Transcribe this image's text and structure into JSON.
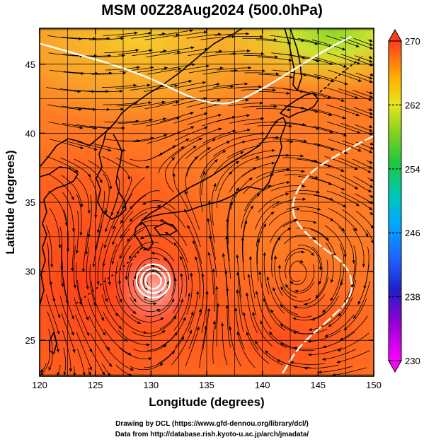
{
  "title": "MSM 00Z28Aug2024 (500.0hPa)",
  "credits": {
    "line1": "Drawing by DCL (https://www.gfd-dennou.org/library/dcl/)",
    "line2": "Data from http://database.rish.kyoto-u.ac.jp/arch/jmadata/"
  },
  "axes": {
    "xlabel": "Longitude (degrees)",
    "ylabel": "Latitude  (degrees)",
    "xlim": [
      120,
      150
    ],
    "ylim": [
      22.4,
      47.6
    ],
    "xticks": [
      120,
      125,
      130,
      135,
      140,
      145,
      150
    ],
    "yticks": [
      25,
      30,
      35,
      40,
      45
    ]
  },
  "colorbar": {
    "range": [
      230,
      270
    ],
    "tick_labels": [
      "270",
      "262",
      "254",
      "246",
      "238",
      "230"
    ],
    "tick_values": [
      270,
      262,
      254,
      246,
      238,
      230
    ]
  },
  "colors": {
    "cold_end": "#ff00ff",
    "warm_end": "#ff3b1f",
    "contour": "#ffffff",
    "coast": "#000000",
    "streamline": "#000000"
  },
  "chart_data": {
    "type": "heatmap",
    "variable_range": [
      230,
      270
    ],
    "typhoon_center": {
      "lon": 130.2,
      "lat": 29.3
    },
    "anticyclone_center": {
      "lon": 143.0,
      "lat": 29.8
    },
    "contour_262_lon_lat": [
      [
        120,
        46.5
      ],
      [
        124,
        45.6
      ],
      [
        128,
        44.6
      ],
      [
        131,
        43.6
      ],
      [
        134,
        42.4
      ],
      [
        137,
        42.0
      ],
      [
        140,
        43.2
      ],
      [
        143,
        44.7
      ],
      [
        146,
        46.2
      ],
      [
        148,
        47.0
      ]
    ],
    "contour_262_east_lon_lat": [
      [
        150,
        39.8
      ],
      [
        146,
        38.2
      ],
      [
        143.4,
        36.5
      ],
      [
        142.4,
        34.2
      ],
      [
        144.5,
        32.2
      ],
      [
        147.8,
        30.4
      ],
      [
        148.2,
        28.2
      ],
      [
        145.6,
        26.2
      ],
      [
        143.3,
        24.6
      ],
      [
        141.8,
        22.6
      ]
    ],
    "vortex_contour_radii_deg": [
      0.7,
      1.1,
      1.5
    ]
  }
}
